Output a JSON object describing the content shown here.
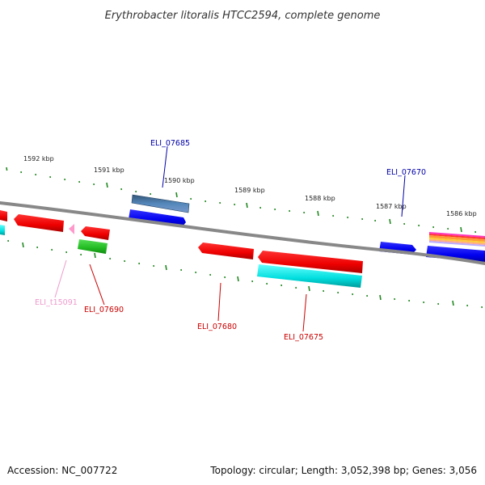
{
  "title": "Erythrobacter litoralis HTCC2594, complete genome",
  "accession": "Accession: NC_007722",
  "summary": "Topology: circular; Length: 3,052,398 bp; Genes: 3,056",
  "kbp_labels": [
    "1592 kbp",
    "1591 kbp",
    "1590 kbp",
    "1589 kbp",
    "1588 kbp",
    "1587 kbp",
    "1586 kbp"
  ],
  "genes": [
    {
      "label": "ELI_07685",
      "color": "#0000aa"
    },
    {
      "label": "ELI_07670",
      "color": "#0000aa"
    },
    {
      "label": "ELI_t15091",
      "color": "#ee99cc"
    },
    {
      "label": "ELI_07690",
      "color": "#cc0000"
    },
    {
      "label": "ELI_07680",
      "color": "#cc0000"
    },
    {
      "label": "ELI_07675",
      "color": "#cc0000"
    }
  ],
  "colors": {
    "tick": "#228822",
    "backbone": "#888888",
    "forward_cds": "#0000ee",
    "reverse_cds": "#ee0000",
    "rrna_cyan": "#00dddd",
    "gene_green": "#22bb22",
    "gene_steel": "#4477aa",
    "trna_pink": "#ff99cc"
  }
}
